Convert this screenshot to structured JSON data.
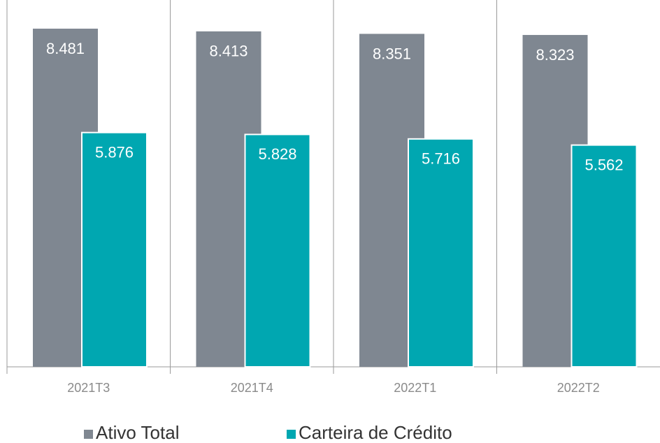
{
  "chart_data": {
    "type": "bar",
    "categories": [
      "2021T3",
      "2021T4",
      "2022T1",
      "2022T2"
    ],
    "series": [
      {
        "name": "Ativo Total",
        "color": "#7f8791",
        "values": [
          8.481,
          8.413,
          8.351,
          8.323
        ]
      },
      {
        "name": "Carteira de Crédito",
        "color": "#00a7b1",
        "values": [
          5.876,
          5.828,
          5.716,
          5.562
        ]
      }
    ],
    "ylim": [
      0,
      9.2
    ]
  }
}
